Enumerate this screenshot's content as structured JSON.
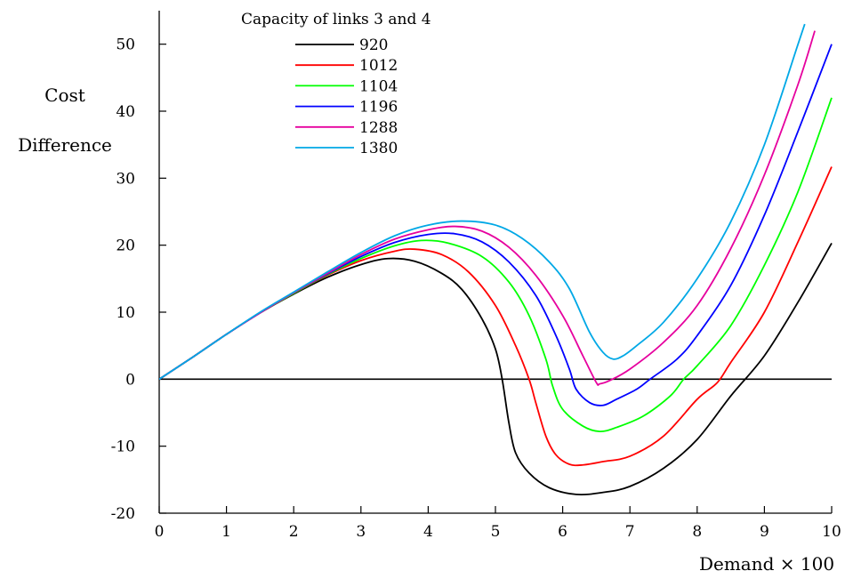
{
  "chart_data": {
    "type": "line",
    "ylabel_line1": "Cost",
    "ylabel_line2": "Difference",
    "xlabel": "Demand × 100",
    "legend_title": "Capacity of links 3 and 4",
    "legend_placement": "top-left",
    "xlim": [
      0,
      10
    ],
    "ylim": [
      -20,
      55
    ],
    "xticks": [
      0,
      1,
      2,
      3,
      4,
      5,
      6,
      7,
      8,
      9,
      10
    ],
    "yticks": [
      -20,
      -10,
      0,
      10,
      20,
      30,
      40,
      50
    ],
    "grid": false,
    "zero_line": true,
    "series": [
      {
        "name": "920",
        "color": "#000000",
        "points": [
          [
            0,
            0
          ],
          [
            0.5,
            3.3
          ],
          [
            1,
            6.7
          ],
          [
            1.5,
            9.9
          ],
          [
            2,
            12.7
          ],
          [
            2.5,
            15.2
          ],
          [
            3,
            17.1
          ],
          [
            3.4,
            18.0
          ],
          [
            3.8,
            17.6
          ],
          [
            4.2,
            15.8
          ],
          [
            4.5,
            13.4
          ],
          [
            4.8,
            9.0
          ],
          [
            5.0,
            4.5
          ],
          [
            5.1,
            0
          ],
          [
            5.2,
            -6.5
          ],
          [
            5.3,
            -11.0
          ],
          [
            5.5,
            -14.0
          ],
          [
            5.8,
            -16.2
          ],
          [
            6.2,
            -17.2
          ],
          [
            6.6,
            -16.9
          ],
          [
            7.0,
            -16.0
          ],
          [
            7.5,
            -13.3
          ],
          [
            8.0,
            -9.0
          ],
          [
            8.5,
            -2.5
          ],
          [
            9.0,
            3.5
          ],
          [
            9.5,
            11.5
          ],
          [
            10.0,
            20.3
          ]
        ]
      },
      {
        "name": "1012",
        "color": "#ff0000",
        "points": [
          [
            0,
            0
          ],
          [
            0.5,
            3.3
          ],
          [
            1,
            6.7
          ],
          [
            1.5,
            9.9
          ],
          [
            2,
            12.8
          ],
          [
            2.5,
            15.5
          ],
          [
            3,
            17.7
          ],
          [
            3.5,
            19.1
          ],
          [
            3.8,
            19.4
          ],
          [
            4.2,
            18.6
          ],
          [
            4.6,
            16.0
          ],
          [
            5.0,
            11.0
          ],
          [
            5.3,
            5.0
          ],
          [
            5.5,
            0
          ],
          [
            5.6,
            -3.5
          ],
          [
            5.75,
            -8.5
          ],
          [
            5.9,
            -11.3
          ],
          [
            6.1,
            -12.7
          ],
          [
            6.3,
            -12.8
          ],
          [
            6.6,
            -12.3
          ],
          [
            7.0,
            -11.5
          ],
          [
            7.5,
            -8.5
          ],
          [
            8.0,
            -3.0
          ],
          [
            8.3,
            -0.5
          ],
          [
            8.5,
            2.5
          ],
          [
            9.0,
            10.0
          ],
          [
            9.5,
            20.5
          ],
          [
            10.0,
            31.7
          ]
        ]
      },
      {
        "name": "1104",
        "color": "#00ff00",
        "points": [
          [
            0,
            0
          ],
          [
            0.5,
            3.3
          ],
          [
            1,
            6.7
          ],
          [
            1.5,
            9.9
          ],
          [
            2,
            12.8
          ],
          [
            2.5,
            15.6
          ],
          [
            3,
            18.0
          ],
          [
            3.5,
            19.9
          ],
          [
            3.9,
            20.7
          ],
          [
            4.3,
            20.3
          ],
          [
            4.8,
            18.3
          ],
          [
            5.2,
            14.5
          ],
          [
            5.5,
            9.5
          ],
          [
            5.75,
            3.0
          ],
          [
            5.85,
            -1.0
          ],
          [
            6.0,
            -4.5
          ],
          [
            6.3,
            -7.0
          ],
          [
            6.55,
            -7.8
          ],
          [
            6.8,
            -7.2
          ],
          [
            7.2,
            -5.5
          ],
          [
            7.6,
            -2.5
          ],
          [
            7.8,
            0
          ],
          [
            8.0,
            2.0
          ],
          [
            8.5,
            8.0
          ],
          [
            9.0,
            17.0
          ],
          [
            9.5,
            28.0
          ],
          [
            10.0,
            42.0
          ]
        ]
      },
      {
        "name": "1196",
        "color": "#0000ff",
        "points": [
          [
            0,
            0
          ],
          [
            0.5,
            3.3
          ],
          [
            1,
            6.7
          ],
          [
            1.5,
            9.9
          ],
          [
            2,
            12.9
          ],
          [
            2.5,
            15.7
          ],
          [
            3,
            18.3
          ],
          [
            3.5,
            20.4
          ],
          [
            4.0,
            21.6
          ],
          [
            4.4,
            21.7
          ],
          [
            4.8,
            20.5
          ],
          [
            5.2,
            17.5
          ],
          [
            5.6,
            12.5
          ],
          [
            5.9,
            6.5
          ],
          [
            6.1,
            1.5
          ],
          [
            6.2,
            -1.5
          ],
          [
            6.4,
            -3.5
          ],
          [
            6.6,
            -3.9
          ],
          [
            6.8,
            -3.0
          ],
          [
            7.1,
            -1.5
          ],
          [
            7.3,
            0
          ],
          [
            7.7,
            3.0
          ],
          [
            8.0,
            6.5
          ],
          [
            8.5,
            14.0
          ],
          [
            9.0,
            24.5
          ],
          [
            9.5,
            37.0
          ],
          [
            10.0,
            50.0
          ]
        ]
      },
      {
        "name": "1288",
        "color": "#e6009e",
        "points": [
          [
            0,
            0
          ],
          [
            0.5,
            3.3
          ],
          [
            1,
            6.7
          ],
          [
            1.5,
            9.9
          ],
          [
            2,
            12.9
          ],
          [
            2.5,
            15.8
          ],
          [
            3,
            18.6
          ],
          [
            3.5,
            20.9
          ],
          [
            4.0,
            22.3
          ],
          [
            4.4,
            22.8
          ],
          [
            4.8,
            22.1
          ],
          [
            5.2,
            19.7
          ],
          [
            5.6,
            15.5
          ],
          [
            6.0,
            9.5
          ],
          [
            6.3,
            3.5
          ],
          [
            6.5,
            -0.5
          ],
          [
            6.55,
            -0.7
          ],
          [
            6.7,
            -0.2
          ],
          [
            7.0,
            1.5
          ],
          [
            7.5,
            5.5
          ],
          [
            8.0,
            11.0
          ],
          [
            8.5,
            19.5
          ],
          [
            9.0,
            30.5
          ],
          [
            9.5,
            44.0
          ],
          [
            9.75,
            52.0
          ]
        ]
      },
      {
        "name": "1380",
        "color": "#00a8e6",
        "points": [
          [
            0,
            0
          ],
          [
            0.5,
            3.3
          ],
          [
            1,
            6.7
          ],
          [
            1.5,
            10.0
          ],
          [
            2,
            13.0
          ],
          [
            2.5,
            16.0
          ],
          [
            3,
            18.9
          ],
          [
            3.5,
            21.4
          ],
          [
            4.0,
            23.0
          ],
          [
            4.5,
            23.6
          ],
          [
            5.0,
            23.0
          ],
          [
            5.4,
            21.0
          ],
          [
            5.8,
            17.5
          ],
          [
            6.1,
            13.5
          ],
          [
            6.4,
            7.0
          ],
          [
            6.6,
            4.0
          ],
          [
            6.75,
            3.0
          ],
          [
            6.9,
            3.5
          ],
          [
            7.1,
            5.0
          ],
          [
            7.5,
            8.5
          ],
          [
            8.0,
            15.0
          ],
          [
            8.5,
            23.5
          ],
          [
            9.0,
            35.0
          ],
          [
            9.5,
            50.0
          ],
          [
            9.6,
            53.0
          ]
        ]
      }
    ]
  }
}
